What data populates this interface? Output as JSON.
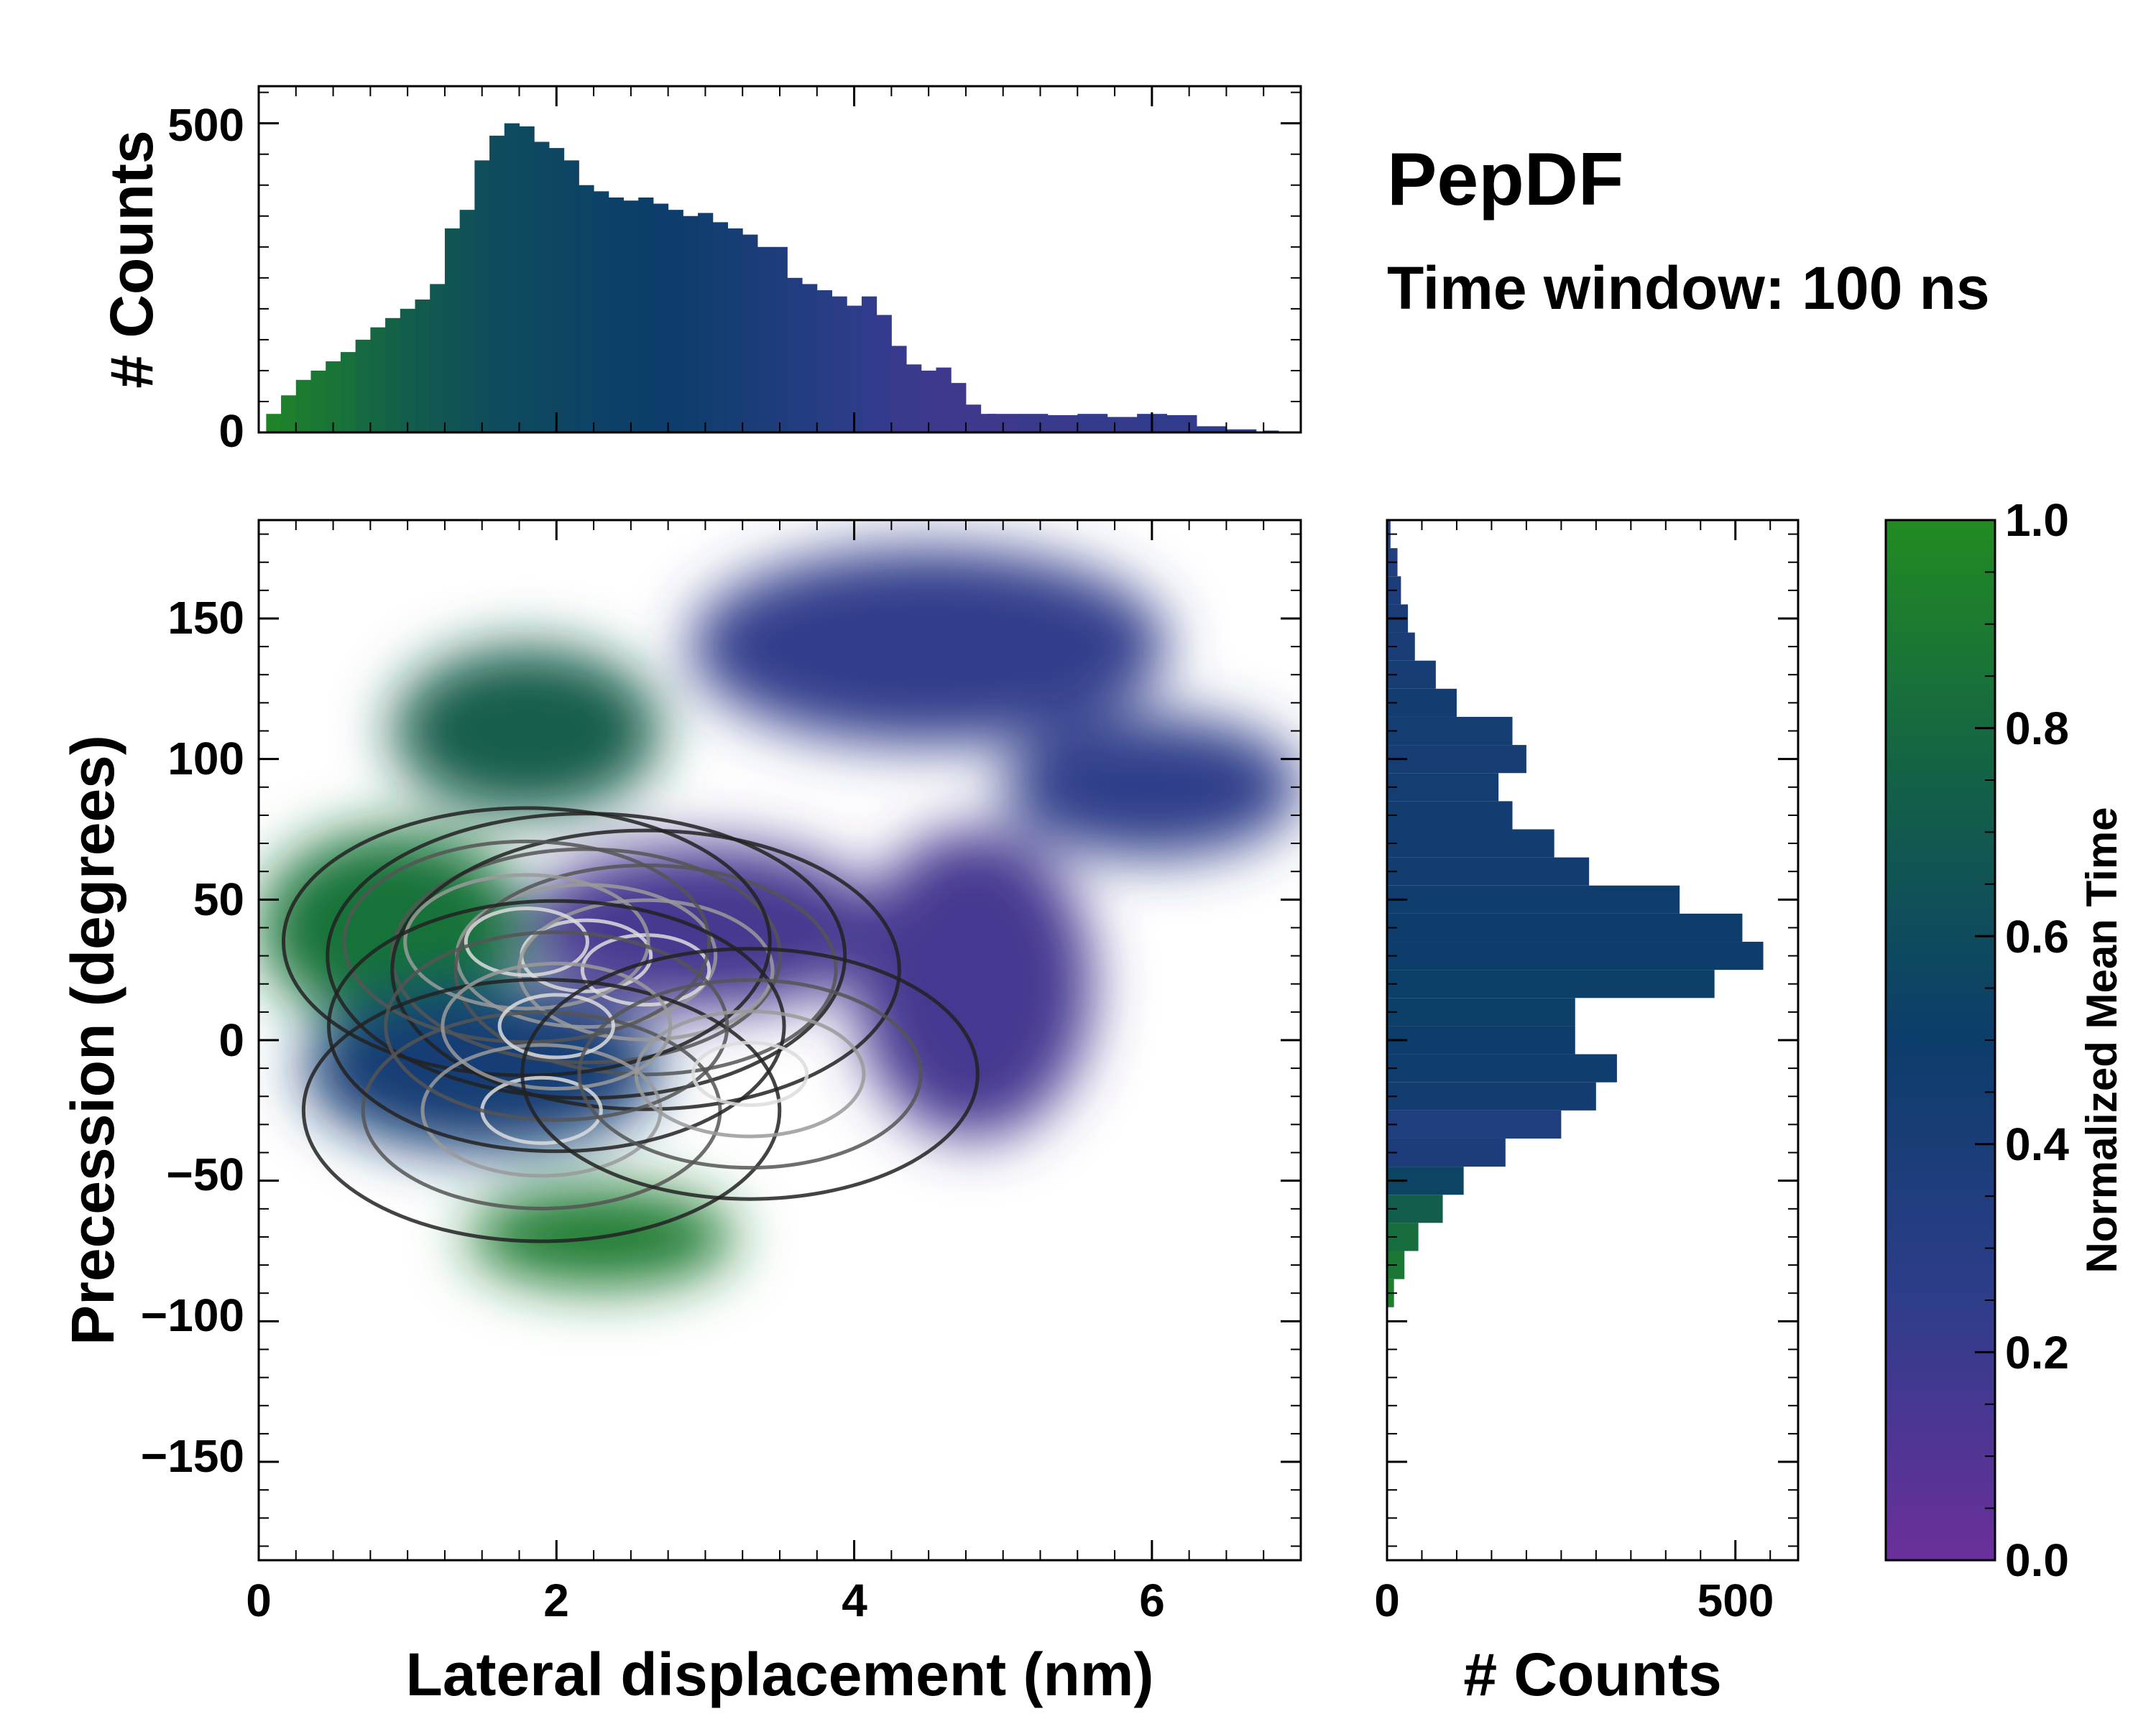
{
  "figure": {
    "title": "PepDF",
    "subtitle": "Time window: 100 ns"
  },
  "chart_data": [
    {
      "id": "top_histogram",
      "type": "bar",
      "xlabel": "",
      "ylabel": "# Counts",
      "xlim": [
        0,
        7
      ],
      "ylim": [
        0,
        560
      ],
      "yticks": [
        "0",
        "500"
      ],
      "x": [
        0.1,
        0.2,
        0.3,
        0.4,
        0.5,
        0.6,
        0.7,
        0.8,
        0.9,
        1.0,
        1.1,
        1.2,
        1.3,
        1.4,
        1.5,
        1.6,
        1.7,
        1.8,
        1.9,
        2.0,
        2.1,
        2.2,
        2.3,
        2.4,
        2.5,
        2.6,
        2.7,
        2.8,
        2.9,
        3.0,
        3.1,
        3.2,
        3.3,
        3.4,
        3.5,
        3.6,
        3.7,
        3.8,
        3.9,
        4.0,
        4.1,
        4.2,
        4.3,
        4.4,
        4.5,
        4.6,
        4.7,
        4.8,
        4.9,
        5.0,
        5.2,
        5.4,
        5.6,
        5.8,
        6.0,
        6.2,
        6.4,
        6.6,
        6.8
      ],
      "values": [
        30,
        60,
        85,
        100,
        115,
        130,
        150,
        170,
        185,
        200,
        215,
        240,
        330,
        360,
        440,
        480,
        500,
        495,
        470,
        460,
        440,
        400,
        390,
        380,
        375,
        380,
        370,
        360,
        350,
        355,
        340,
        330,
        320,
        300,
        300,
        250,
        240,
        230,
        220,
        205,
        220,
        190,
        140,
        110,
        100,
        105,
        80,
        45,
        30,
        30,
        30,
        28,
        30,
        25,
        30,
        28,
        10,
        5,
        3
      ],
      "mean_time": [
        0.95,
        0.93,
        0.9,
        0.88,
        0.86,
        0.84,
        0.8,
        0.78,
        0.75,
        0.72,
        0.7,
        0.68,
        0.66,
        0.64,
        0.62,
        0.6,
        0.59,
        0.58,
        0.57,
        0.56,
        0.55,
        0.54,
        0.53,
        0.52,
        0.52,
        0.51,
        0.5,
        0.49,
        0.48,
        0.46,
        0.44,
        0.42,
        0.4,
        0.38,
        0.36,
        0.34,
        0.32,
        0.3,
        0.28,
        0.26,
        0.24,
        0.22,
        0.2,
        0.2,
        0.19,
        0.18,
        0.18,
        0.18,
        0.18,
        0.18,
        0.2,
        0.2,
        0.22,
        0.22,
        0.24,
        0.24,
        0.25,
        0.25,
        0.25
      ]
    },
    {
      "id": "main_2d",
      "type": "heatmap",
      "xlabel": "Lateral displacement (nm)",
      "ylabel": "Precession (degrees)",
      "xlim": [
        0,
        7
      ],
      "ylim": [
        -185,
        185
      ],
      "xticks": [
        "0",
        "2",
        "4",
        "6"
      ],
      "yticks": [
        "−150",
        "−100",
        "−50",
        "0",
        "50",
        "100",
        "150"
      ],
      "color_metric": "Normalized Mean Time",
      "blobs": [
        {
          "cx": 0.9,
          "cy": 40,
          "rx": 0.9,
          "ry": 35,
          "t": 0.85
        },
        {
          "cx": 1.8,
          "cy": 110,
          "rx": 0.9,
          "ry": 30,
          "t": 0.72
        },
        {
          "cx": 2.3,
          "cy": -70,
          "rx": 0.9,
          "ry": 18,
          "t": 0.9
        },
        {
          "cx": 1.5,
          "cy": -10,
          "rx": 1.2,
          "ry": 30,
          "t": 0.42
        },
        {
          "cx": 3.0,
          "cy": 40,
          "rx": 1.2,
          "ry": 30,
          "t": 0.15
        },
        {
          "cx": 4.5,
          "cy": 140,
          "rx": 1.6,
          "ry": 35,
          "t": 0.24
        },
        {
          "cx": 4.8,
          "cy": 20,
          "rx": 0.8,
          "ry": 55,
          "t": 0.16
        },
        {
          "cx": 6.0,
          "cy": 90,
          "rx": 1.0,
          "ry": 25,
          "t": 0.26
        }
      ],
      "density_peaks": [
        {
          "x": 2.2,
          "y": 30,
          "level": 1.0
        },
        {
          "x": 2.6,
          "y": 25,
          "level": 0.95
        },
        {
          "x": 1.8,
          "y": 35,
          "level": 0.85
        },
        {
          "x": 1.9,
          "y": -25,
          "level": 0.8
        },
        {
          "x": 2.0,
          "y": 5,
          "level": 0.7
        },
        {
          "x": 3.3,
          "y": -12,
          "level": 0.7
        }
      ]
    },
    {
      "id": "right_histogram",
      "type": "bar",
      "orientation": "horizontal",
      "xlabel": "# Counts",
      "ylabel": "",
      "xlim": [
        0,
        590
      ],
      "ylim": [
        -185,
        185
      ],
      "xticks": [
        "0",
        "500"
      ],
      "y": [
        -90,
        -80,
        -70,
        -60,
        -50,
        -40,
        -30,
        -20,
        -10,
        0,
        10,
        20,
        30,
        40,
        50,
        60,
        70,
        80,
        90,
        100,
        110,
        120,
        130,
        140,
        150,
        160,
        170,
        180
      ],
      "values": [
        10,
        25,
        45,
        80,
        110,
        170,
        250,
        300,
        330,
        270,
        270,
        470,
        540,
        510,
        420,
        290,
        240,
        180,
        160,
        200,
        180,
        100,
        70,
        40,
        30,
        20,
        15,
        5
      ],
      "mean_time": [
        0.92,
        0.88,
        0.82,
        0.72,
        0.55,
        0.38,
        0.35,
        0.45,
        0.48,
        0.5,
        0.52,
        0.52,
        0.5,
        0.5,
        0.48,
        0.45,
        0.45,
        0.45,
        0.44,
        0.42,
        0.44,
        0.45,
        0.42,
        0.4,
        0.4,
        0.38,
        0.35,
        0.3
      ]
    },
    {
      "id": "colorbar",
      "type": "colorbar",
      "label": "Normalized Mean Time",
      "range": [
        0,
        1
      ],
      "ticks": [
        "0.0",
        "0.2",
        "0.4",
        "0.6",
        "0.8",
        "1.0"
      ],
      "colors": {
        "low": "#6b2f9a",
        "lowmid": "#2e3d8a",
        "mid": "#0c3d6b",
        "highmid": "#136147",
        "high": "#228b22"
      }
    }
  ]
}
